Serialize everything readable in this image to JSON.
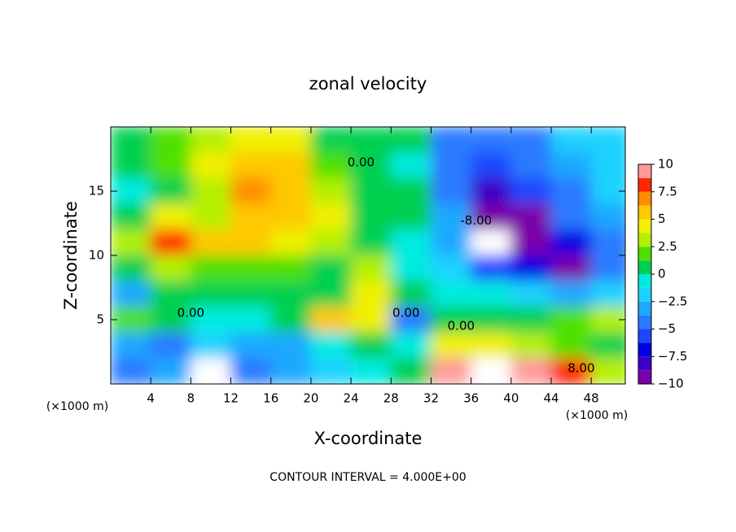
{
  "chart_data": {
    "type": "contour",
    "title": "zonal velocity",
    "x_label": "X-coordinate",
    "y_label": "Z-coordinate",
    "x_unit": "(×1000 m)",
    "footer": "CONTOUR INTERVAL = 4.000E+00",
    "xlim": [
      0,
      51.4
    ],
    "ylim": [
      0,
      20
    ],
    "xticks": [
      4,
      8,
      12,
      16,
      20,
      24,
      28,
      32,
      36,
      40,
      44,
      48
    ],
    "yticks": [
      5,
      10,
      15
    ],
    "x": [
      2,
      6,
      10,
      14,
      18,
      22,
      26,
      30,
      34,
      38,
      42,
      46,
      50
    ],
    "y": [
      19,
      17,
      15,
      13,
      11,
      9,
      7,
      5,
      3,
      1
    ],
    "cell_size": [
      4,
      2
    ],
    "values": [
      [
        1,
        2,
        3,
        4,
        4,
        1,
        0,
        0,
        -4,
        -5,
        -4,
        -2,
        -2
      ],
      [
        0,
        2,
        4,
        6,
        5,
        2,
        0,
        -1,
        -4,
        -6,
        -5,
        -3,
        -2
      ],
      [
        -1,
        1,
        3,
        7,
        6,
        3,
        1,
        0,
        -4,
        -8,
        -6,
        -4,
        -2
      ],
      [
        0,
        4,
        3,
        5,
        5,
        4,
        1,
        0,
        -3,
        -10,
        -9,
        -5,
        -3
      ],
      [
        3,
        8,
        5,
        5,
        4,
        3,
        1,
        -1,
        -3,
        -12,
        -10,
        -7,
        -4
      ],
      [
        0,
        3,
        2,
        2,
        2,
        1,
        3,
        -1,
        -2,
        -6,
        -7,
        -10,
        -4
      ],
      [
        -3,
        1,
        0,
        1,
        0,
        1,
        4,
        0,
        -1,
        -1,
        -2,
        -3,
        -2
      ],
      [
        2,
        0,
        -1,
        -1,
        0,
        5,
        4,
        -4,
        0,
        1,
        1,
        2,
        3
      ],
      [
        -3,
        -4,
        -2,
        -3,
        -3,
        -1,
        0,
        -1,
        4,
        4,
        3,
        2,
        1
      ],
      [
        -5,
        -3,
        -11,
        -4,
        -3,
        -2,
        -1,
        0,
        9,
        12,
        10,
        8,
        3
      ]
    ],
    "clim": [
      -10,
      10
    ],
    "colors": [
      "#7a00a8",
      "#3c00c8",
      "#0000e6",
      "#1e46ff",
      "#2a7aff",
      "#1ea8ff",
      "#1ed2ff",
      "#00ebe0",
      "#00d050",
      "#50e000",
      "#b4f000",
      "#f0f000",
      "#ffc800",
      "#ff8c00",
      "#ff2800",
      "#ff9a9a"
    ],
    "out_of_range_color": "#ffffff",
    "cbticks": [
      10,
      7.5,
      5,
      2.5,
      0,
      {
        "value": -2.5,
        "label": "−2.5"
      },
      {
        "value": -5,
        "label": "−5"
      },
      {
        "value": -7.5,
        "label": "−7.5"
      },
      {
        "value": -10,
        "label": "−10"
      }
    ],
    "contour_labels": [
      {
        "text": "0.00",
        "x": 25,
        "y": 17.2
      },
      {
        "text": "0.00",
        "x": 8,
        "y": 5.5
      },
      {
        "text": "0.00",
        "x": 29.5,
        "y": 5.5
      },
      {
        "text": "0.00",
        "x": 35,
        "y": 4.5
      },
      {
        "text": "-8.00",
        "x": 36.5,
        "y": 12.7
      },
      {
        "text": "8.00",
        "x": 47,
        "y": 1.2
      }
    ]
  }
}
